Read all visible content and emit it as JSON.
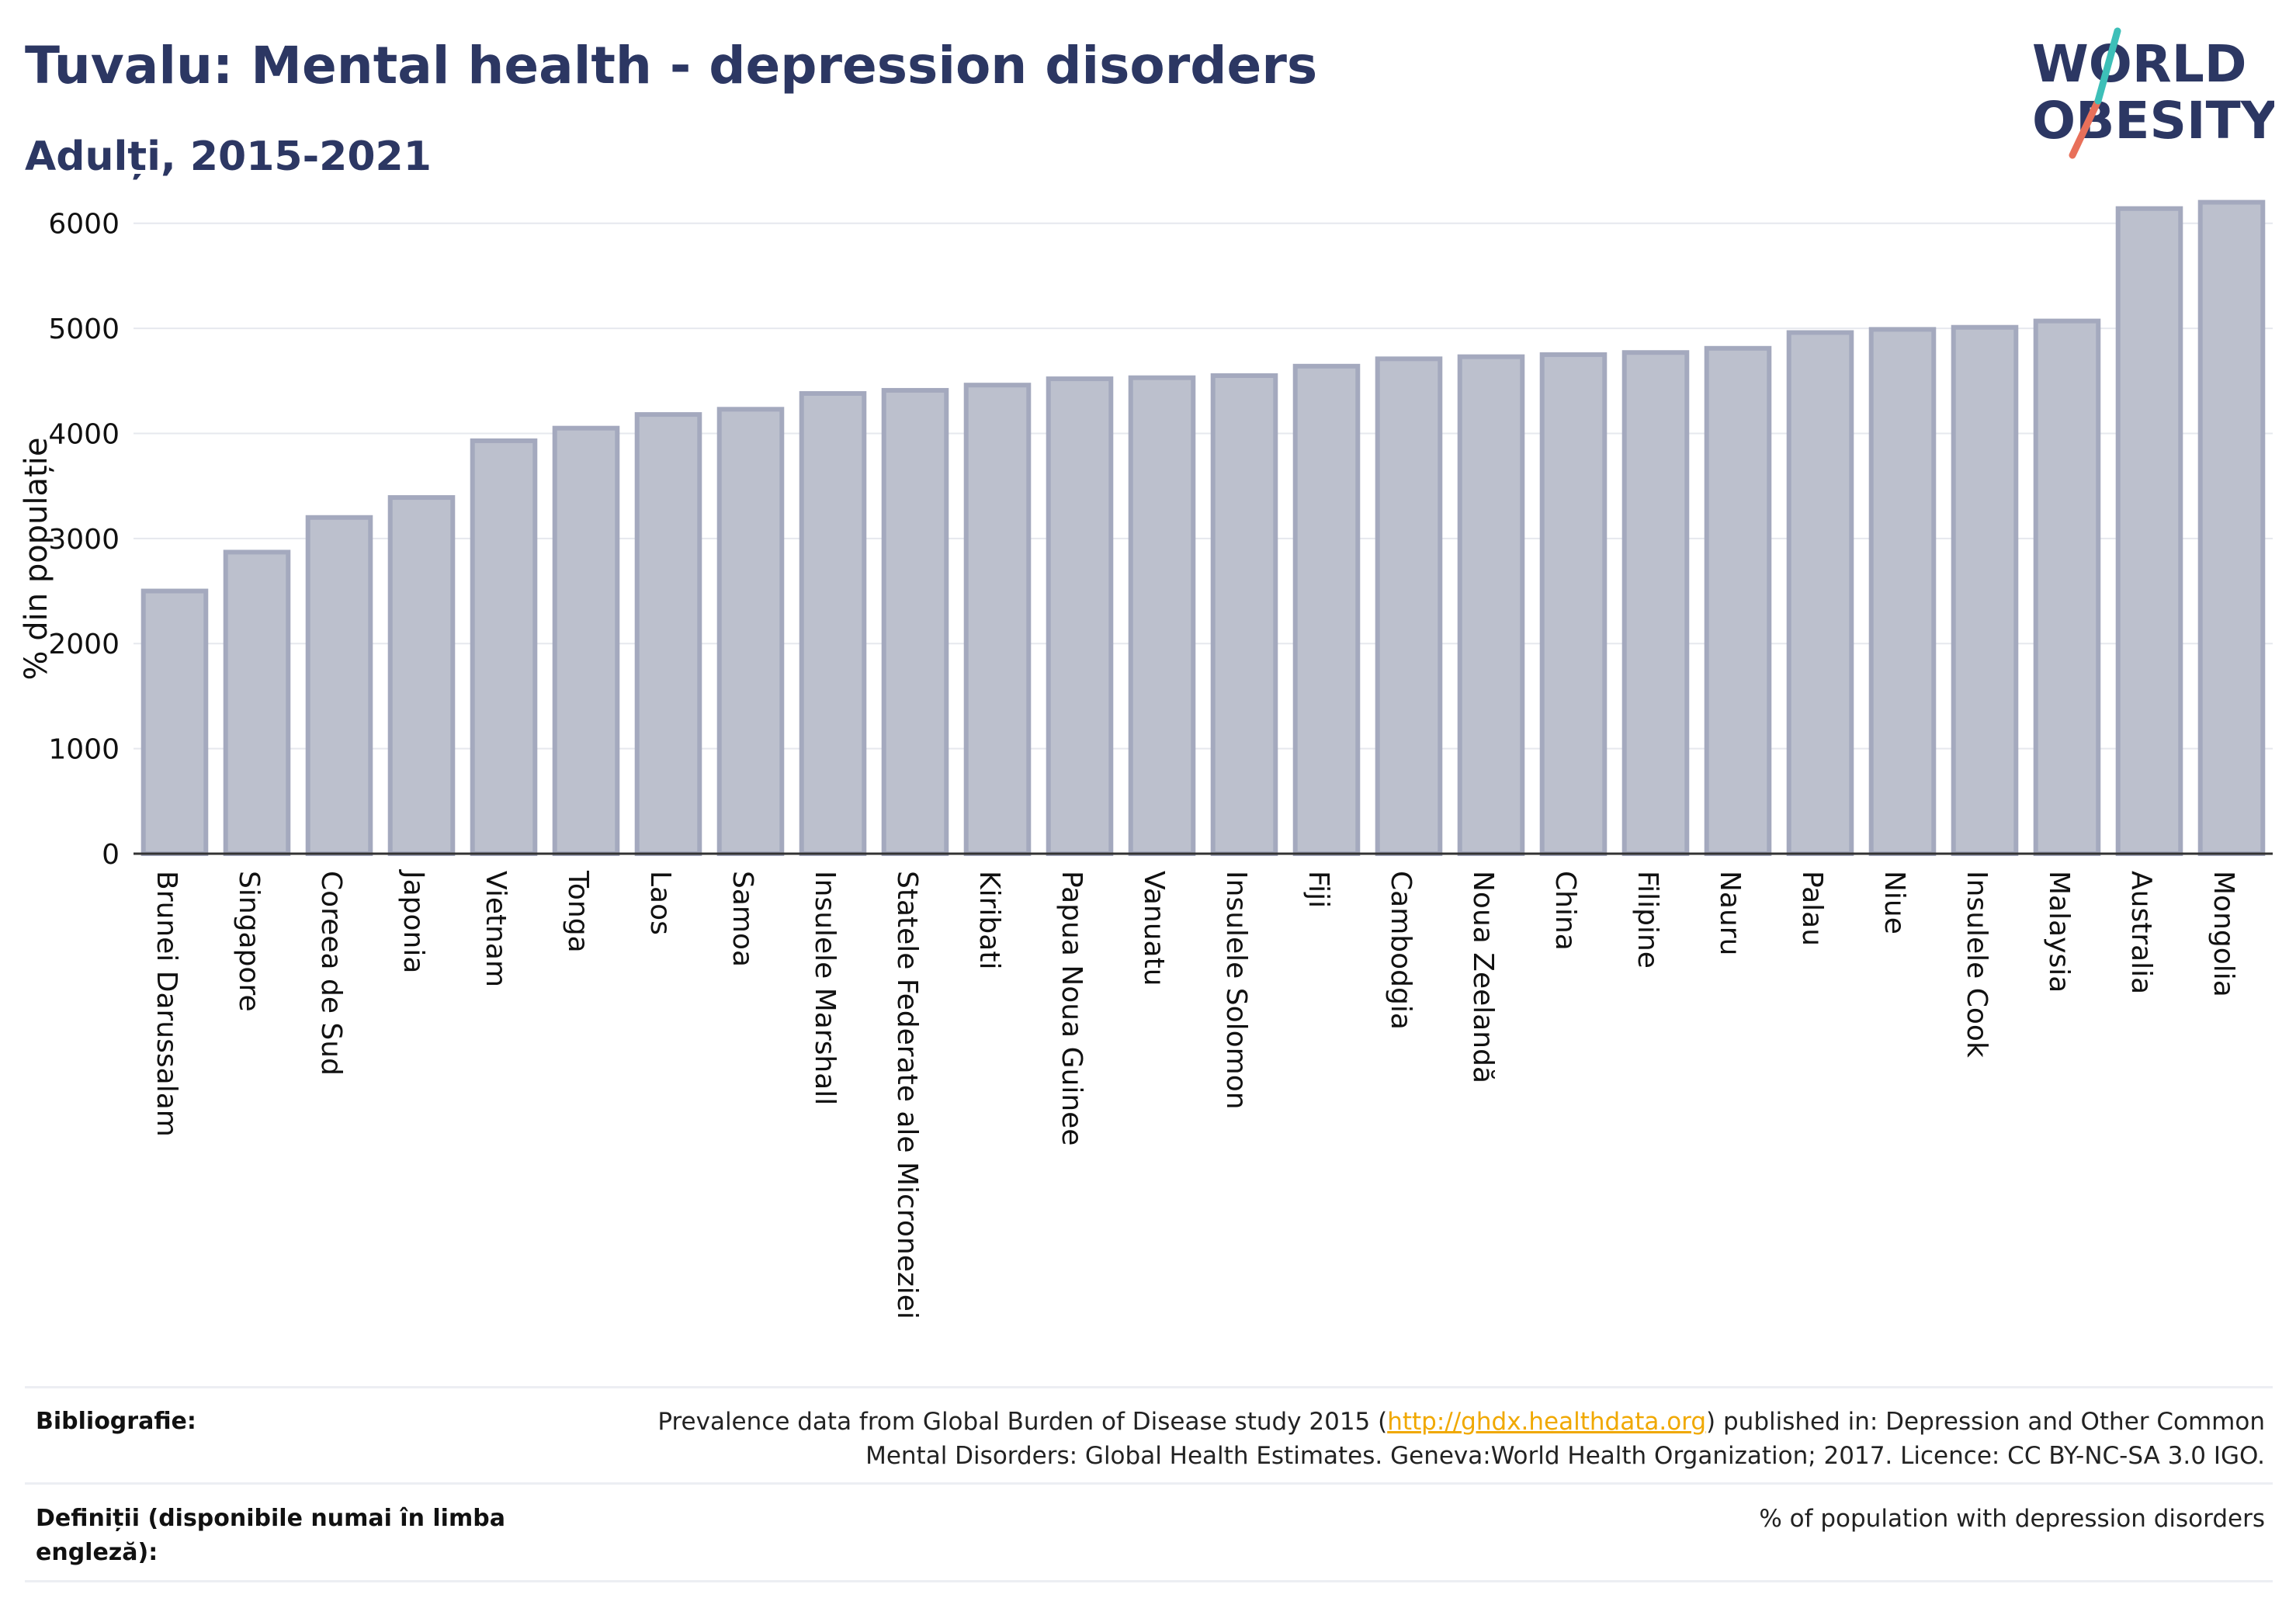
{
  "header": {
    "title": "Tuvalu: Mental health - depression disorders",
    "subtitle": "Adulți, 2015-2021"
  },
  "logo": {
    "line1": "WORLD",
    "line2": "OBESITY",
    "accent_color": "#e8705a",
    "accent_color_2": "#3dbfb8"
  },
  "chart_data": {
    "type": "bar",
    "ylabel": "% din populație",
    "ylim": [
      0,
      6500
    ],
    "yticks": [
      0,
      1000,
      2000,
      3000,
      4000,
      5000,
      6000
    ],
    "grid": true,
    "bar_color": "#bcc0cd",
    "bar_edge_color": "#a4a9be",
    "categories": [
      "Brunei Darussalam",
      "Singapore",
      "Coreea de Sud",
      "Japonia",
      "Vietnam",
      "Tonga",
      "Laos",
      "Samoa",
      "Insulele Marshall",
      "Statele Federate ale Microneziei",
      "Kiribati",
      "Papua Noua Guinee",
      "Vanuatu",
      "Insulele Solomon",
      "Fiji",
      "Cambodgia",
      "Noua Zeelandă",
      "China",
      "Filipine",
      "Nauru",
      "Palau",
      "Niue",
      "Insulele Cook",
      "Malaysia",
      "Australia",
      "Mongolia"
    ],
    "values": [
      2500,
      2870,
      3200,
      3390,
      3930,
      4050,
      4180,
      4230,
      4380,
      4410,
      4460,
      4520,
      4530,
      4550,
      4640,
      4710,
      4730,
      4750,
      4770,
      4810,
      4960,
      4990,
      5010,
      5070,
      6140,
      6200
    ]
  },
  "footer": {
    "bibliography_label": "Bibliografie:",
    "bibliography_pre": "Prevalence data from Global Burden of Disease study 2015 (",
    "bibliography_link": "http://ghdx.healthdata.org",
    "bibliography_post": ") published in: Depression and Other Common",
    "bibliography_line2": "Mental Disorders: Global Health Estimates. Geneva:World Health Organization; 2017. Licence: CC BY-NC-SA 3.0 IGO.",
    "definitions_label_line1": "Definiții (disponibile numai în limba",
    "definitions_label_line2": "engleză):",
    "definitions_text": "% of population with depression disorders"
  }
}
